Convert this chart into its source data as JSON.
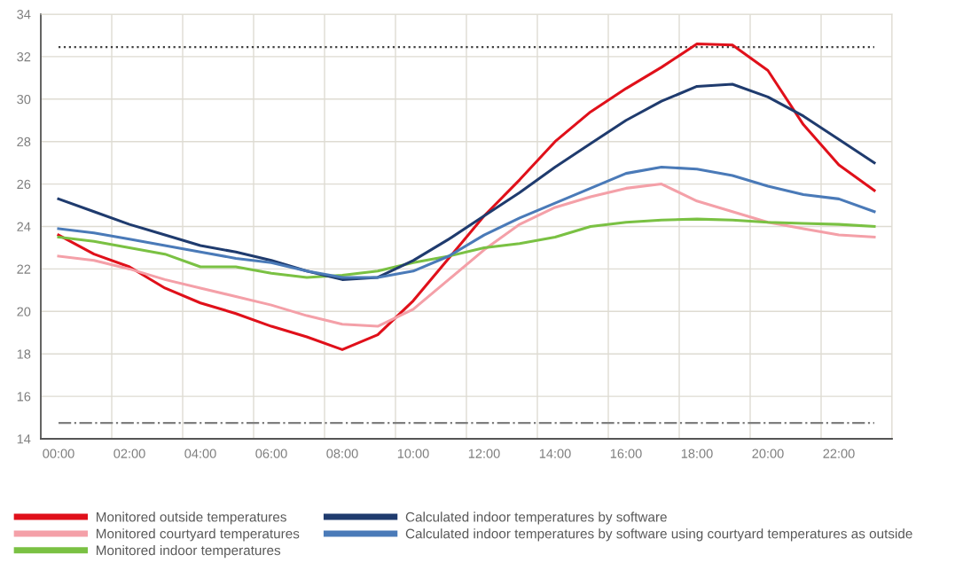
{
  "chart_data": {
    "type": "line",
    "categories": [
      "00:00",
      null,
      "02:00",
      null,
      "04:00",
      null,
      "06:00",
      null,
      "08:00",
      null,
      "10:00",
      null,
      "12:00",
      null,
      "14:00",
      null,
      "16:00",
      null,
      "18:00",
      null,
      "20:00",
      null,
      "22:00",
      null
    ],
    "series": [
      {
        "name": "Monitored outside temperatures",
        "color": "#e0101a",
        "values": [
          23.6,
          22.7,
          22.1,
          21.1,
          20.4,
          19.9,
          19.3,
          18.8,
          18.2,
          18.9,
          20.5,
          22.5,
          24.5,
          26.2,
          28.0,
          29.4,
          30.5,
          31.5,
          32.6,
          32.55,
          31.35,
          28.8,
          26.9,
          25.7
        ]
      },
      {
        "name": "Monitored courtyard temperatures",
        "color": "#f4a0a8",
        "values": [
          22.6,
          22.4,
          22.0,
          21.5,
          21.1,
          20.7,
          20.3,
          19.8,
          19.4,
          19.3,
          20.1,
          21.5,
          22.9,
          24.1,
          24.9,
          25.4,
          25.8,
          26.0,
          25.2,
          24.7,
          24.2,
          23.9,
          23.6,
          23.5
        ]
      },
      {
        "name": "Monitored indoor temperatures",
        "color": "#7ac143",
        "values": [
          23.5,
          23.3,
          23.0,
          22.7,
          22.1,
          22.1,
          21.8,
          21.6,
          21.7,
          21.9,
          22.3,
          22.6,
          23.0,
          23.2,
          23.5,
          24.0,
          24.2,
          24.3,
          24.35,
          24.3,
          24.2,
          24.15,
          24.1,
          24.0
        ]
      },
      {
        "name": "Calculated indoor temperatures by software",
        "color": "#1f3b6e",
        "values": [
          25.3,
          24.7,
          24.1,
          23.6,
          23.1,
          22.8,
          22.4,
          21.9,
          21.5,
          21.6,
          22.4,
          23.4,
          24.5,
          25.6,
          26.8,
          27.9,
          29.0,
          29.9,
          30.6,
          30.7,
          30.1,
          29.2,
          28.1,
          27.0
        ]
      },
      {
        "name": "Calculated indoor temperatures by software using courtyard temperatures as outside",
        "color": "#4a7ab8",
        "values": [
          23.9,
          23.7,
          23.4,
          23.1,
          22.8,
          22.5,
          22.3,
          21.9,
          21.6,
          21.6,
          21.9,
          22.6,
          23.6,
          24.4,
          25.1,
          25.8,
          26.5,
          26.8,
          26.7,
          26.4,
          25.9,
          25.5,
          25.3,
          24.7
        ]
      }
    ],
    "ylim": [
      14,
      34
    ],
    "yticks": [
      14,
      16,
      18,
      20,
      22,
      24,
      26,
      28,
      30,
      32,
      34
    ],
    "grid": true,
    "legend": "bottom",
    "line_style": "solid",
    "marker": "none",
    "ref_lines": [
      {
        "axis": "y",
        "value": 32.45,
        "color": "#404040",
        "line_style": "dotted"
      },
      {
        "axis": "y",
        "value": 14.75,
        "color": "#7f7f7f",
        "line_style": "dashdot"
      }
    ]
  }
}
